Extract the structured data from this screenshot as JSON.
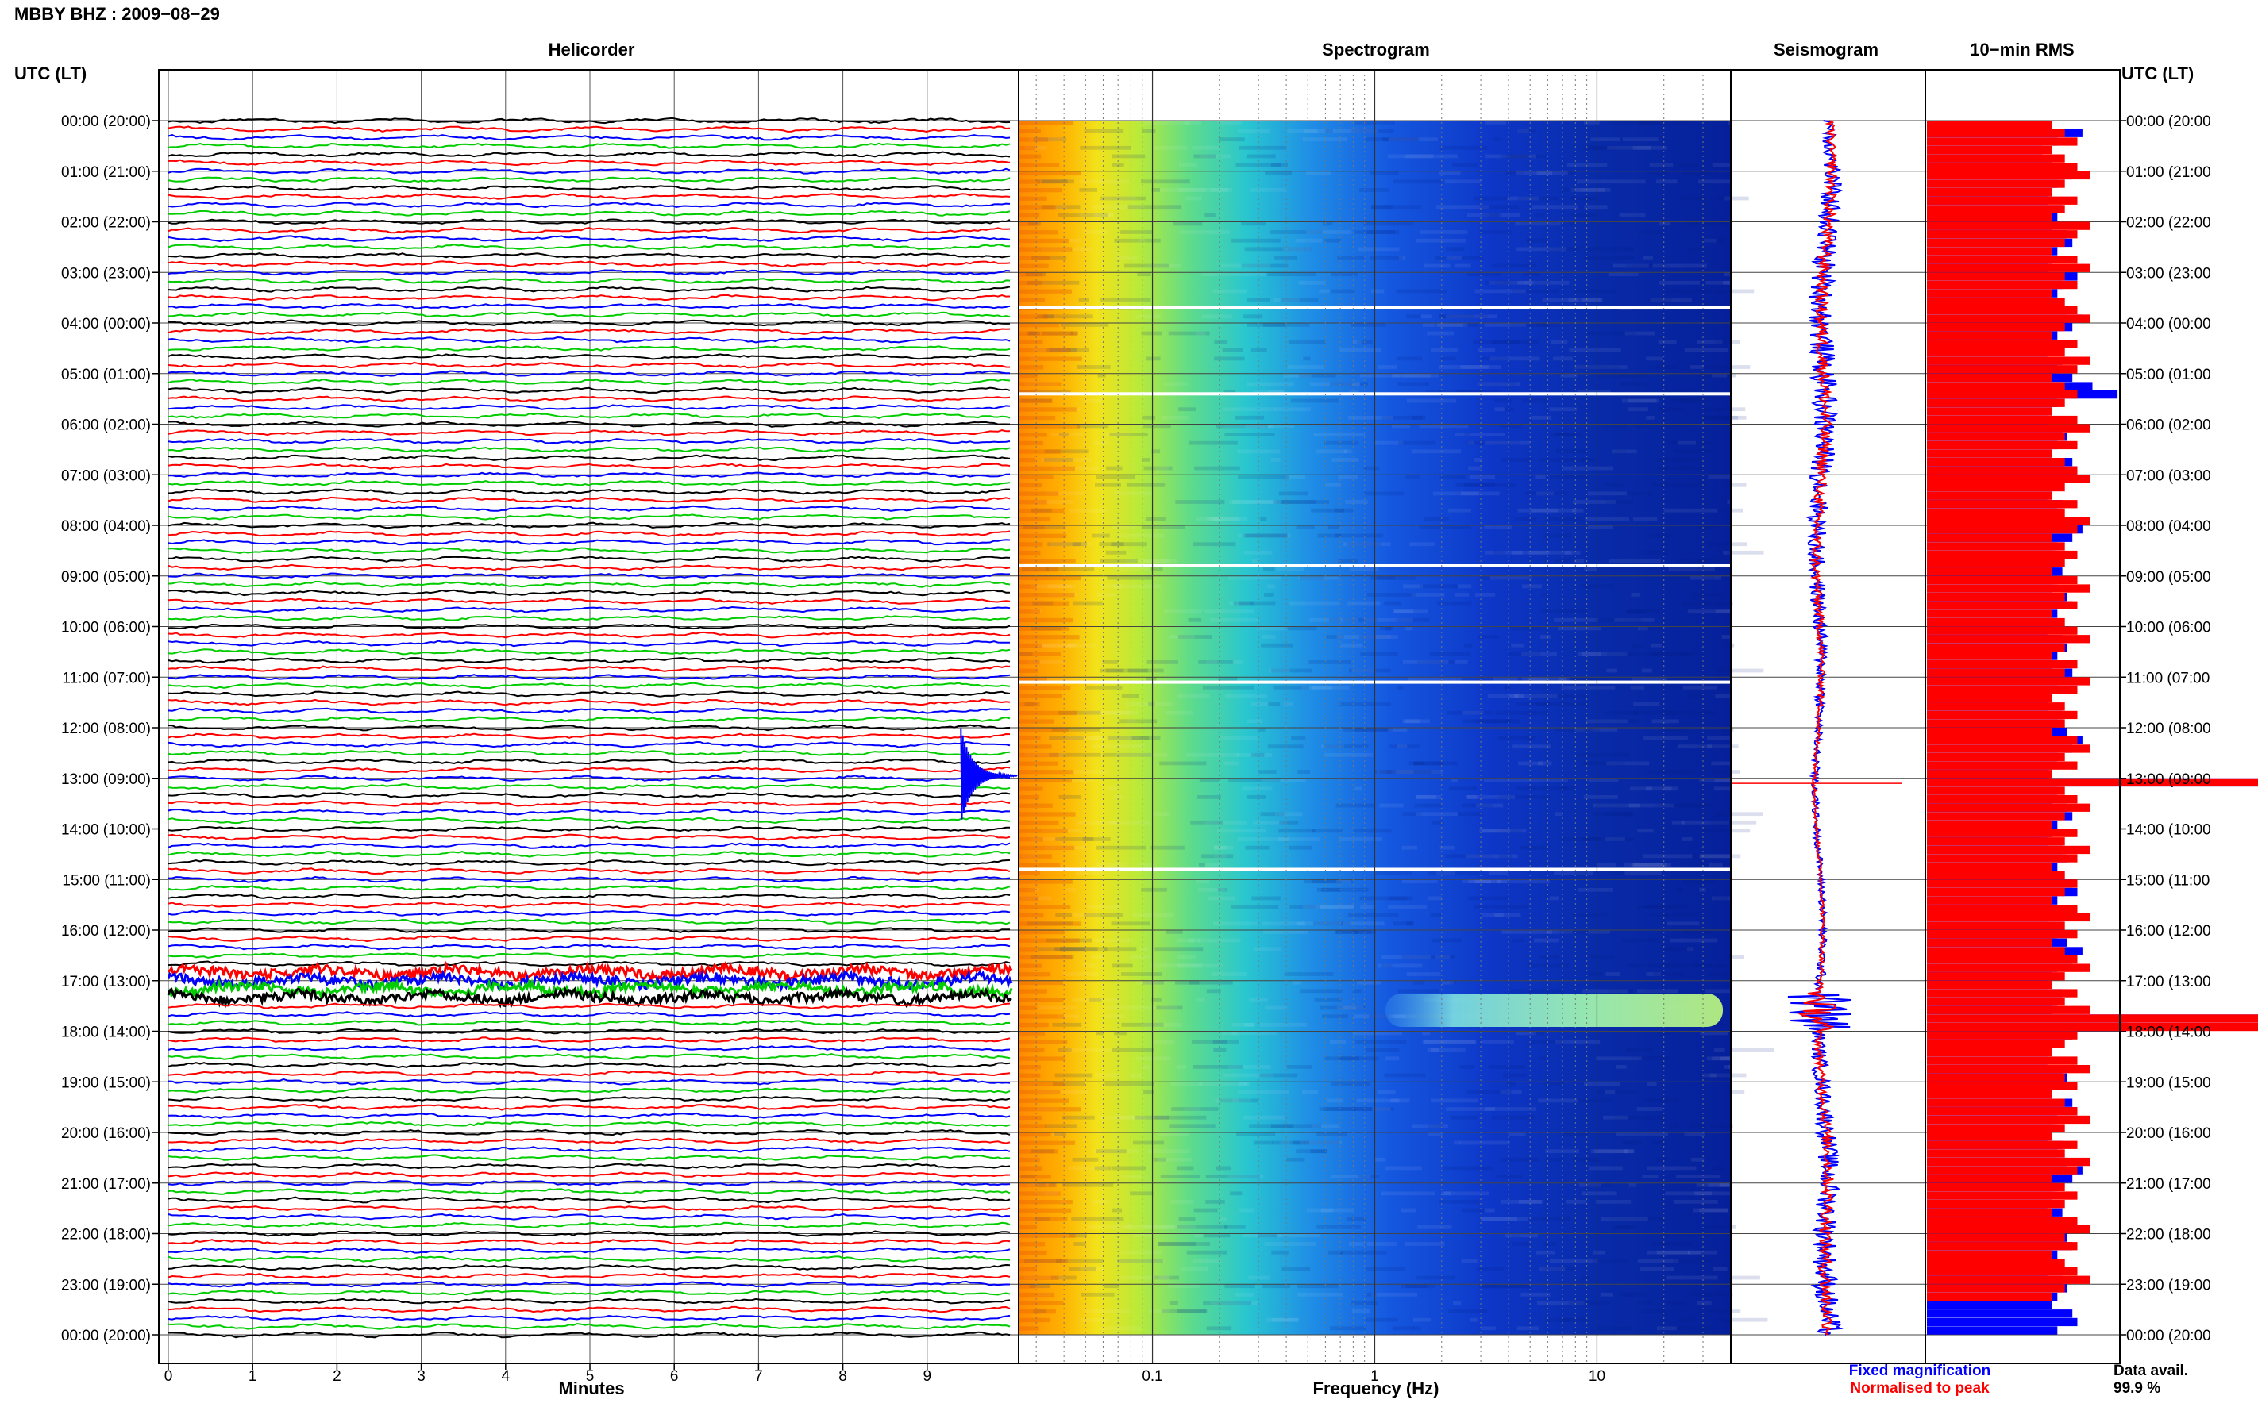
{
  "header": {
    "station_title": "MBBY BHZ : 2009−08−29"
  },
  "panels": {
    "helicorder": "Helicorder",
    "spectrogram": "Spectrogram",
    "seismogram": "Seismogram",
    "rms": "10−min RMS"
  },
  "axes": {
    "left_header": "UTC (LT)",
    "right_header": "UTC (LT)",
    "helicorder_xlabel": "Minutes",
    "spectrogram_xlabel": "Frequency (Hz)"
  },
  "legend": {
    "fixed": "Fixed magnification",
    "normalised": "Normalised to peak",
    "fixed_color": "#0000ff",
    "normalised_color": "#ff0000"
  },
  "data_availability": {
    "label": "Data avail.",
    "value": "99.9 %"
  },
  "colors": {
    "trace_cycle": [
      "#000000",
      "#ff0000",
      "#0000ff",
      "#00cc00"
    ],
    "frame": "#000000",
    "grid": "#333333"
  },
  "chart_data": [
    {
      "type": "line",
      "name": "helicorder",
      "x": [
        0,
        10
      ],
      "xticks": [
        "0",
        "1",
        "2",
        "3",
        "4",
        "5",
        "6",
        "7",
        "8",
        "9"
      ],
      "xlabel": "Minutes",
      "yticks": [
        "00:00 (20:00)",
        "01:00 (21:00)",
        "02:00 (22:00)",
        "03:00 (23:00)",
        "04:00 (00:00)",
        "05:00 (01:00)",
        "06:00 (02:00)",
        "07:00 (03:00)",
        "08:00 (04:00)",
        "09:00 (05:00)",
        "10:00 (06:00)",
        "11:00 (07:00)",
        "12:00 (08:00)",
        "13:00 (09:00)",
        "14:00 (10:00)",
        "15:00 (11:00)",
        "16:00 (12:00)",
        "17:00 (13:00)",
        "18:00 (14:00)",
        "19:00 (15:00)",
        "20:00 (16:00)",
        "21:00 (17:00)",
        "22:00 (18:00)",
        "23:00 (19:00)",
        "00:00 (20:00)"
      ],
      "traces_per_hour": 6,
      "events": [
        {
          "utc": "12:50",
          "minute": 9.4,
          "note": "spike"
        },
        {
          "utc": "17:20",
          "minute": 0,
          "note": "high noise band"
        }
      ]
    },
    {
      "type": "heatmap",
      "name": "spectrogram",
      "xlabel": "Frequency (Hz)",
      "xscale": "log",
      "xlim": [
        0.025,
        40
      ],
      "xticks": [
        "0.1",
        "1",
        "10"
      ],
      "hours": 24,
      "events": [
        {
          "utc": "17:20",
          "fmin": 1.5,
          "fmax": 40
        }
      ]
    },
    {
      "type": "line",
      "name": "seismogram",
      "series": [
        "Fixed magnification",
        "Normalised to peak"
      ],
      "events": [
        {
          "utc": "13:10"
        },
        {
          "utc": "17:40"
        }
      ]
    },
    {
      "type": "bar",
      "name": "10-min RMS",
      "orientation": "horizontal",
      "series": [
        "Fixed magnification",
        "Normalised to peak"
      ],
      "rms_red": [
        1.0,
        1.1,
        1.2,
        1.0,
        1.1,
        1.2,
        1.3,
        1.1,
        1.0,
        1.2,
        1.1,
        1.0,
        1.3,
        1.2,
        1.1,
        1.0,
        1.2,
        1.3,
        1.1,
        1.2,
        1.0,
        1.1,
        1.2,
        1.3,
        1.1,
        1.0,
        1.2,
        1.1,
        1.3,
        1.2,
        1.0,
        1.1,
        1.2,
        1.1,
        1.0,
        1.2,
        1.3,
        1.1,
        1.2,
        1.0,
        1.1,
        1.2,
        1.3,
        1.1,
        1.0,
        1.2,
        1.1,
        1.3,
        1.2,
        1.0,
        1.1,
        1.2,
        1.1,
        1.0,
        1.2,
        1.3,
        1.1,
        1.2,
        1.0,
        1.1,
        1.2,
        1.3,
        1.1,
        1.0,
        1.2,
        1.1,
        1.3,
        1.2,
        1.0,
        1.1,
        1.2,
        1.1,
        1.0,
        1.2,
        1.3,
        1.1,
        1.2,
        1.0,
        4.5,
        1.1,
        1.2,
        1.3,
        1.1,
        1.0,
        1.2,
        1.1,
        1.3,
        1.2,
        1.0,
        1.1,
        1.2,
        1.1,
        1.0,
        1.2,
        1.3,
        1.1,
        1.2,
        1.0,
        1.1,
        1.2,
        1.3,
        1.1,
        1.0,
        1.2,
        1.1,
        1.3,
        9.6,
        3.0,
        1.2,
        1.1,
        1.0,
        1.2,
        1.3,
        1.1,
        1.2,
        1.0,
        1.1,
        1.2,
        1.3,
        1.1,
        1.0,
        1.2,
        1.1,
        1.3,
        1.2,
        1.0,
        1.1,
        1.2,
        1.1,
        1.0,
        1.2,
        1.3,
        1.1,
        1.2,
        1.0,
        1.1,
        1.2,
        1.3,
        1.1,
        1.0
      ],
      "rms_blue": [
        2.5,
        3.1,
        2.6,
        2.3,
        2.5,
        2.8,
        2.9,
        2.6,
        2.5,
        2.4,
        2.7,
        2.6,
        2.5,
        2.8,
        2.9,
        2.6,
        2.5,
        2.4,
        3.0,
        2.7,
        2.6,
        2.5,
        2.8,
        3.1,
        2.9,
        2.6,
        2.5,
        2.4,
        2.7,
        2.6,
        2.9,
        3.3,
        3.8,
        2.6,
        2.5,
        2.4,
        2.7,
        2.8,
        2.6,
        2.5,
        2.9,
        3.0,
        2.6,
        2.5,
        2.4,
        2.7,
        2.6,
        2.8,
        3.1,
        2.9,
        2.6,
        2.5,
        2.4,
        2.7,
        2.6,
        2.5,
        2.8,
        2.9,
        2.6,
        2.5,
        2.4,
        2.7,
        2.8,
        2.6,
        2.5,
        2.9,
        3.0,
        2.6,
        2.5,
        2.4,
        2.7,
        2.6,
        2.8,
        3.1,
        2.9,
        2.6,
        2.5,
        2.4,
        9.6,
        2.6,
        2.5,
        2.8,
        2.9,
        2.6,
        2.5,
        2.4,
        2.7,
        2.8,
        2.6,
        2.5,
        2.9,
        3.0,
        2.6,
        2.5,
        2.4,
        2.7,
        2.6,
        2.8,
        3.1,
        2.9,
        2.6,
        2.5,
        2.4,
        2.7,
        2.6,
        2.5,
        9.6,
        4.0,
        2.9,
        2.6,
        2.5,
        2.4,
        2.7,
        2.8,
        2.6,
        2.5,
        2.9,
        3.0,
        2.6,
        2.5,
        2.4,
        2.7,
        2.6,
        2.8,
        3.1,
        2.9,
        2.6,
        2.5,
        2.4,
        2.7,
        2.6,
        2.5,
        2.8,
        2.9,
        2.6,
        2.5,
        2.4,
        2.7,
        2.8,
        2.6,
        2.5,
        2.9,
        3.0,
        2.6
      ]
    }
  ]
}
